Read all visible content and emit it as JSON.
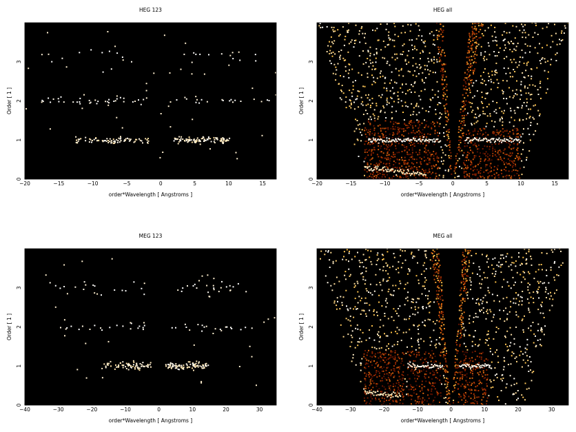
{
  "figure": {
    "background": "#ffffff",
    "colormap": [
      "#000000",
      "#5a0f00",
      "#a32c00",
      "#e06a10",
      "#ffc040",
      "#ffffff"
    ]
  },
  "chart_data": [
    {
      "type": "heatmap",
      "title": "HEG 123",
      "xlabel": "order*Wavelength [ Angstroms ]",
      "ylabel": "Order [ 1 ]",
      "xlim": [
        -20,
        17
      ],
      "ylim": [
        0,
        4
      ],
      "xticks": [
        -20,
        -15,
        -10,
        -5,
        0,
        5,
        10,
        15
      ],
      "yticks": [
        0,
        1,
        2,
        3
      ],
      "grid": false,
      "seed": 11,
      "bands": [
        {
          "y": 1.0,
          "x_ranges": [
            [
              -12.5,
              -1.8
            ],
            [
              1.8,
              10.2
            ]
          ],
          "count": 170,
          "spread": 0.04,
          "peak": 0.9
        },
        {
          "y": 2.0,
          "x_ranges": [
            [
              -17.5,
              -1.5
            ],
            [
              2.0,
              16.0
            ]
          ],
          "count": 55,
          "spread": 0.04,
          "peak": 0.95
        },
        {
          "y": 3.1,
          "x_ranges": [
            [
              -18.0,
              -3.5
            ],
            [
              2.5,
              14.5
            ]
          ],
          "count": 28,
          "spread": 0.12,
          "peak": 0.95
        }
      ],
      "background_points": 40
    },
    {
      "type": "heatmap",
      "title": "HEG all",
      "xlabel": "order*Wavelength [ Angstroms ]",
      "ylabel": "Order [ 1 ]",
      "xlim": [
        -20,
        17
      ],
      "ylim": [
        0,
        4
      ],
      "xticks": [
        -20,
        -15,
        -10,
        -5,
        0,
        5,
        10,
        15
      ],
      "yticks": [
        0,
        1,
        2,
        3
      ],
      "grid": false,
      "seed": 23,
      "wedge": {
        "x_left_top": -2.5,
        "x_right_top": 4.5,
        "x_left_bottom": -0.3,
        "x_right_bottom": 0.3,
        "fill": 0.75
      },
      "noise_density": 0.18,
      "noise_cutoff_x_left": [
        -20,
        -13
      ],
      "noise_cutoff_x_right": [
        17,
        10
      ],
      "blocks": [
        {
          "x": [
            -13,
            -2
          ],
          "y": [
            0,
            1.5
          ],
          "density": 0.55,
          "intensity": 0.45
        },
        {
          "x": [
            1.5,
            10
          ],
          "y": [
            0,
            1.3
          ],
          "density": 0.55,
          "intensity": 0.45
        }
      ],
      "bright_lines": [
        {
          "x": [
            -12.5,
            -1.8
          ],
          "y": 1.0,
          "intensity": 0.95
        },
        {
          "x": [
            1.8,
            10.0
          ],
          "y": 1.0,
          "intensity": 0.95
        },
        {
          "x": [
            -13,
            -4
          ],
          "y": 0.3,
          "slope": -0.02,
          "intensity": 0.9
        }
      ]
    },
    {
      "type": "heatmap",
      "title": "MEG 123",
      "xlabel": "order*Wavelength [ Angstroms ]",
      "ylabel": "Order [ 1 ]",
      "xlim": [
        -40,
        35
      ],
      "ylim": [
        0,
        4
      ],
      "xticks": [
        -40,
        -30,
        -20,
        -10,
        0,
        10,
        20,
        30
      ],
      "yticks": [
        0,
        1,
        2,
        3
      ],
      "grid": false,
      "seed": 37,
      "bands": [
        {
          "y": 1.0,
          "x_ranges": [
            [
              -17,
              -2
            ],
            [
              2,
              15
            ]
          ],
          "count": 160,
          "spread": 0.05,
          "peak": 0.9
        },
        {
          "y": 2.0,
          "x_ranges": [
            [
              -30,
              -3
            ],
            [
              3,
              28
            ]
          ],
          "count": 40,
          "spread": 0.05,
          "peak": 0.95
        },
        {
          "y": 3.0,
          "x_ranges": [
            [
              -34,
              -4
            ],
            [
              4,
              27
            ]
          ],
          "count": 40,
          "spread": 0.1,
          "peak": 0.95
        }
      ],
      "background_points": 35
    },
    {
      "type": "heatmap",
      "title": "MEG all",
      "xlabel": "order*Wavelength [ Angstroms ]",
      "ylabel": "Order [ 1 ]",
      "xlim": [
        -40,
        35
      ],
      "ylim": [
        0,
        4
      ],
      "xticks": [
        -40,
        -30,
        -20,
        -10,
        0,
        10,
        20,
        30
      ],
      "yticks": [
        0,
        1,
        2,
        3
      ],
      "grid": false,
      "seed": 53,
      "wedge": {
        "x_left_top": -6,
        "x_right_top": 6,
        "x_left_bottom": -1,
        "x_right_bottom": 1,
        "fill": 0.75
      },
      "noise_density": 0.17,
      "noise_cutoff_x_left": [
        -40,
        -26
      ],
      "noise_cutoff_x_right": [
        35,
        22
      ],
      "blocks": [
        {
          "x": [
            -26,
            -14
          ],
          "y": [
            0,
            1.4
          ],
          "density": 0.55,
          "intensity": 0.45
        },
        {
          "x": [
            -13,
            -3
          ],
          "y": [
            0,
            1.4
          ],
          "density": 0.5,
          "intensity": 0.45
        },
        {
          "x": [
            2,
            11
          ],
          "y": [
            0,
            1.4
          ],
          "density": 0.5,
          "intensity": 0.45
        }
      ],
      "bright_lines": [
        {
          "x": [
            -13,
            -2.5
          ],
          "y": 1.0,
          "intensity": 0.95
        },
        {
          "x": [
            2.5,
            12
          ],
          "y": 1.0,
          "intensity": 0.95
        },
        {
          "x": [
            -26,
            -15
          ],
          "y": 0.35,
          "slope": -0.01,
          "intensity": 0.9
        }
      ]
    }
  ]
}
